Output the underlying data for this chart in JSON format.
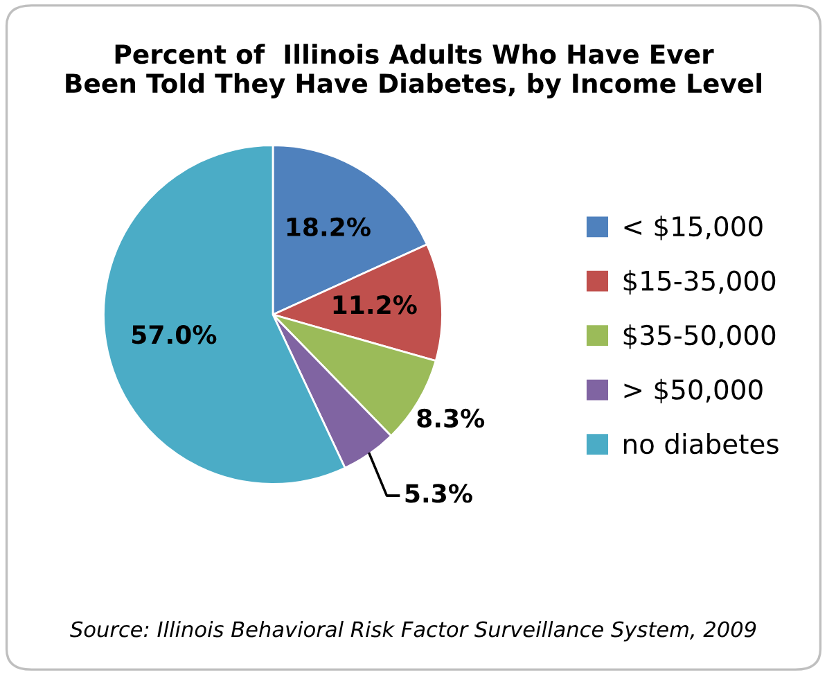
{
  "chart_data": {
    "type": "pie",
    "title": "Percent of  Illinois Adults Who Have Ever\nBeen Told They Have Diabetes, by Income Level",
    "categories": [
      "< $15,000",
      "$15-35,000",
      "$35-50,000",
      "> $50,000",
      "no diabetes"
    ],
    "values": [
      18.2,
      11.2,
      8.3,
      5.3,
      57.0
    ],
    "colors": [
      "#4f81bd",
      "#c0504d",
      "#9bbb59",
      "#8064a2",
      "#4bacc6"
    ],
    "value_labels": [
      "18.2%",
      "11.2%",
      "8.3%",
      "5.3%",
      "57.0%"
    ],
    "legend": "right",
    "annotations": [
      "Source: Illinois Behavioral Risk Factor Surveillance System, 2009"
    ]
  }
}
